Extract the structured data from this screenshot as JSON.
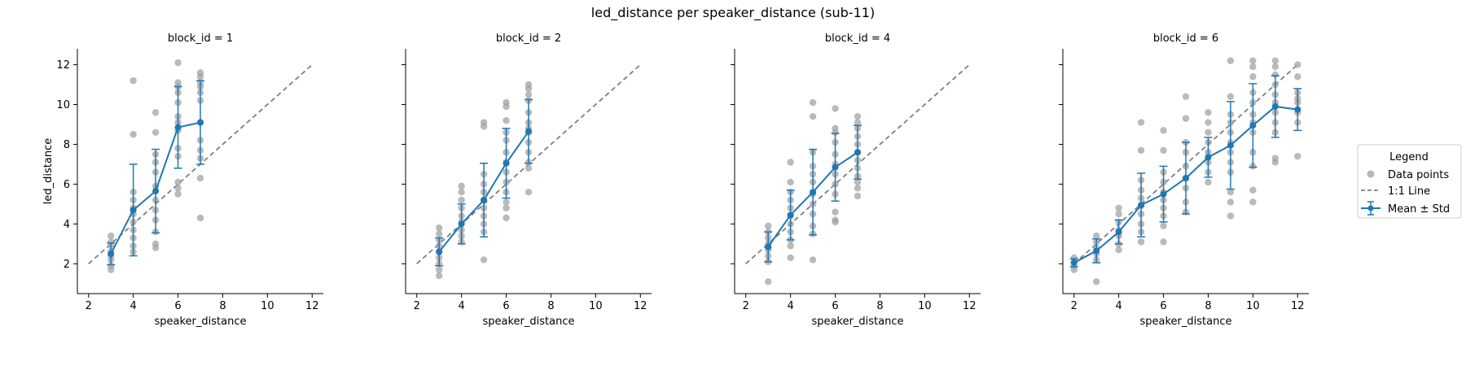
{
  "figure": {
    "title": "led_distance per speaker_distance (sub-11)",
    "x_label": "speaker_distance",
    "y_label": "led_distance"
  },
  "legend": {
    "title": "Legend",
    "placement": "right-outside",
    "items": [
      {
        "label": "Data points",
        "marker": "gray-dot"
      },
      {
        "label": "1:1 Line",
        "marker": "gray-dashed-line"
      },
      {
        "label": "Mean ± Std",
        "marker": "blue-errorbar-line"
      }
    ]
  },
  "colors": {
    "points": "#a0a0a0",
    "mean_line": "#1f77b4",
    "identity_line": "#7f7f7f"
  },
  "chart_data": [
    {
      "type": "scatter",
      "title": "block_id = 1",
      "xlabel": "speaker_distance",
      "ylabel": "led_distance",
      "xlim": [
        1.5,
        12.5
      ],
      "ylim": [
        0.5,
        12.8
      ],
      "xticks": [
        2,
        4,
        6,
        8,
        10,
        12
      ],
      "yticks": [
        2,
        4,
        6,
        8,
        10,
        12
      ],
      "identity_line": [
        2,
        12
      ],
      "points": [
        [
          3,
          3.4
        ],
        [
          3,
          3.1
        ],
        [
          3,
          2.9
        ],
        [
          3,
          2.6
        ],
        [
          3,
          2.4
        ],
        [
          3,
          2.2
        ],
        [
          3,
          1.9
        ],
        [
          3,
          1.7
        ],
        [
          4,
          11.2
        ],
        [
          4,
          8.5
        ],
        [
          4,
          5.6
        ],
        [
          4,
          5.2
        ],
        [
          4,
          4.8
        ],
        [
          4,
          4.5
        ],
        [
          4,
          4.1
        ],
        [
          4,
          3.7
        ],
        [
          4,
          3.3
        ],
        [
          4,
          2.9
        ],
        [
          4,
          2.6
        ],
        [
          5,
          9.6
        ],
        [
          5,
          8.6
        ],
        [
          5,
          7.5
        ],
        [
          5,
          7.1
        ],
        [
          5,
          6.6
        ],
        [
          5,
          5.9
        ],
        [
          5,
          5.2
        ],
        [
          5,
          4.7
        ],
        [
          5,
          4.2
        ],
        [
          5,
          3.6
        ],
        [
          5,
          3.0
        ],
        [
          5,
          2.8
        ],
        [
          6,
          12.1
        ],
        [
          6,
          11.1
        ],
        [
          6,
          10.9
        ],
        [
          6,
          10.6
        ],
        [
          6,
          10.1
        ],
        [
          6,
          9.4
        ],
        [
          6,
          9.1
        ],
        [
          6,
          8.7
        ],
        [
          6,
          7.8
        ],
        [
          6,
          7.4
        ],
        [
          6,
          6.1
        ],
        [
          6,
          5.8
        ],
        [
          6,
          5.5
        ],
        [
          7,
          11.6
        ],
        [
          7,
          11.4
        ],
        [
          7,
          11.1
        ],
        [
          7,
          10.9
        ],
        [
          7,
          10.6
        ],
        [
          7,
          10.2
        ],
        [
          7,
          9.1
        ],
        [
          7,
          8.2
        ],
        [
          7,
          7.7
        ],
        [
          7,
          7.3
        ],
        [
          7,
          6.3
        ],
        [
          7,
          4.3
        ]
      ],
      "means": [
        [
          3,
          2.5
        ],
        [
          4,
          4.7
        ],
        [
          5,
          5.65
        ],
        [
          6,
          8.85
        ],
        [
          7,
          9.1
        ]
      ],
      "std": [
        0.55,
        2.3,
        2.1,
        2.05,
        2.1
      ]
    },
    {
      "type": "scatter",
      "title": "block_id = 2",
      "xlabel": "speaker_distance",
      "ylabel": "",
      "xlim": [
        1.5,
        12.5
      ],
      "ylim": [
        0.5,
        12.8
      ],
      "xticks": [
        2,
        4,
        6,
        8,
        10,
        12
      ],
      "yticks": [
        2,
        4,
        6,
        8,
        10,
        12
      ],
      "identity_line": [
        2,
        12
      ],
      "points": [
        [
          3,
          3.8
        ],
        [
          3,
          3.5
        ],
        [
          3,
          3.2
        ],
        [
          3,
          2.9
        ],
        [
          3,
          2.6
        ],
        [
          3,
          2.3
        ],
        [
          3,
          2.0
        ],
        [
          3,
          1.7
        ],
        [
          3,
          1.4
        ],
        [
          4,
          5.9
        ],
        [
          4,
          5.6
        ],
        [
          4,
          5.2
        ],
        [
          4,
          4.8
        ],
        [
          4,
          4.4
        ],
        [
          4,
          4.1
        ],
        [
          4,
          3.7
        ],
        [
          4,
          3.4
        ],
        [
          4,
          3.1
        ],
        [
          5,
          9.1
        ],
        [
          5,
          8.9
        ],
        [
          5,
          6.5
        ],
        [
          5,
          6.0
        ],
        [
          5,
          5.6
        ],
        [
          5,
          5.2
        ],
        [
          5,
          4.8
        ],
        [
          5,
          4.4
        ],
        [
          5,
          4.0
        ],
        [
          5,
          3.6
        ],
        [
          5,
          2.2
        ],
        [
          6,
          10.1
        ],
        [
          6,
          9.9
        ],
        [
          6,
          9.2
        ],
        [
          6,
          8.6
        ],
        [
          6,
          8.2
        ],
        [
          6,
          7.6
        ],
        [
          6,
          7.1
        ],
        [
          6,
          6.6
        ],
        [
          6,
          6.1
        ],
        [
          6,
          5.6
        ],
        [
          6,
          5.1
        ],
        [
          6,
          4.8
        ],
        [
          6,
          4.3
        ],
        [
          7,
          11.0
        ],
        [
          7,
          10.8
        ],
        [
          7,
          10.5
        ],
        [
          7,
          10.2
        ],
        [
          7,
          9.6
        ],
        [
          7,
          9.1
        ],
        [
          7,
          8.8
        ],
        [
          7,
          8.6
        ],
        [
          7,
          8.1
        ],
        [
          7,
          7.6
        ],
        [
          7,
          7.1
        ],
        [
          7,
          6.8
        ],
        [
          7,
          5.6
        ]
      ],
      "means": [
        [
          3,
          2.6
        ],
        [
          4,
          4.0
        ],
        [
          5,
          5.2
        ],
        [
          6,
          7.05
        ],
        [
          7,
          8.65
        ]
      ],
      "std": [
        0.7,
        1.0,
        1.85,
        1.75,
        1.6
      ]
    },
    {
      "type": "scatter",
      "title": "block_id = 4",
      "xlabel": "speaker_distance",
      "ylabel": "",
      "xlim": [
        1.5,
        12.5
      ],
      "ylim": [
        0.5,
        12.8
      ],
      "xticks": [
        2,
        4,
        6,
        8,
        10,
        12
      ],
      "yticks": [
        2,
        4,
        6,
        8,
        10,
        12
      ],
      "identity_line": [
        2,
        12
      ],
      "points": [
        [
          3,
          3.9
        ],
        [
          3,
          3.6
        ],
        [
          3,
          3.3
        ],
        [
          3,
          3.0
        ],
        [
          3,
          2.7
        ],
        [
          3,
          2.4
        ],
        [
          3,
          2.1
        ],
        [
          3,
          1.1
        ],
        [
          4,
          7.1
        ],
        [
          4,
          6.1
        ],
        [
          4,
          5.6
        ],
        [
          4,
          5.2
        ],
        [
          4,
          4.8
        ],
        [
          4,
          4.4
        ],
        [
          4,
          4.0
        ],
        [
          4,
          3.6
        ],
        [
          4,
          3.2
        ],
        [
          4,
          2.9
        ],
        [
          4,
          2.3
        ],
        [
          5,
          10.1
        ],
        [
          5,
          9.4
        ],
        [
          5,
          7.6
        ],
        [
          5,
          6.9
        ],
        [
          5,
          6.5
        ],
        [
          5,
          6.1
        ],
        [
          5,
          5.5
        ],
        [
          5,
          5.0
        ],
        [
          5,
          4.5
        ],
        [
          5,
          3.9
        ],
        [
          5,
          3.5
        ],
        [
          5,
          2.2
        ],
        [
          6,
          9.8
        ],
        [
          6,
          8.8
        ],
        [
          6,
          8.6
        ],
        [
          6,
          8.1
        ],
        [
          6,
          7.5
        ],
        [
          6,
          7.0
        ],
        [
          6,
          6.5
        ],
        [
          6,
          6.0
        ],
        [
          6,
          5.5
        ],
        [
          6,
          4.6
        ],
        [
          6,
          4.2
        ],
        [
          6,
          4.1
        ],
        [
          7,
          9.4
        ],
        [
          7,
          9.1
        ],
        [
          7,
          8.8
        ],
        [
          7,
          8.4
        ],
        [
          7,
          8.0
        ],
        [
          7,
          7.6
        ],
        [
          7,
          7.2
        ],
        [
          7,
          6.8
        ],
        [
          7,
          6.4
        ],
        [
          7,
          6.1
        ],
        [
          7,
          5.8
        ],
        [
          7,
          5.4
        ]
      ],
      "means": [
        [
          3,
          2.85
        ],
        [
          4,
          4.45
        ],
        [
          5,
          5.6
        ],
        [
          6,
          6.85
        ],
        [
          7,
          7.6
        ]
      ],
      "std": [
        0.75,
        1.25,
        2.15,
        1.7,
        1.35
      ]
    },
    {
      "type": "scatter",
      "title": "block_id = 6",
      "xlabel": "speaker_distance",
      "ylabel": "",
      "xlim": [
        1.5,
        12.5
      ],
      "ylim": [
        0.5,
        12.8
      ],
      "xticks": [
        2,
        4,
        6,
        8,
        10,
        12
      ],
      "yticks": [
        2,
        4,
        6,
        8,
        10,
        12
      ],
      "identity_line": [
        2,
        12
      ],
      "points": [
        [
          2,
          2.3
        ],
        [
          2,
          2.1
        ],
        [
          2,
          1.9
        ],
        [
          2,
          1.7
        ],
        [
          3,
          3.4
        ],
        [
          3,
          3.1
        ],
        [
          3,
          2.8
        ],
        [
          3,
          2.5
        ],
        [
          3,
          2.2
        ],
        [
          3,
          1.1
        ],
        [
          4,
          4.8
        ],
        [
          4,
          4.5
        ],
        [
          4,
          4.1
        ],
        [
          4,
          3.7
        ],
        [
          4,
          3.4
        ],
        [
          4,
          3.0
        ],
        [
          4,
          2.7
        ],
        [
          5,
          9.1
        ],
        [
          5,
          7.7
        ],
        [
          5,
          6.2
        ],
        [
          5,
          5.7
        ],
        [
          5,
          5.3
        ],
        [
          5,
          4.9
        ],
        [
          5,
          4.5
        ],
        [
          5,
          4.0
        ],
        [
          5,
          3.6
        ],
        [
          5,
          3.1
        ],
        [
          6,
          8.7
        ],
        [
          6,
          7.7
        ],
        [
          6,
          6.6
        ],
        [
          6,
          6.1
        ],
        [
          6,
          5.6
        ],
        [
          6,
          5.2
        ],
        [
          6,
          4.8
        ],
        [
          6,
          4.4
        ],
        [
          6,
          3.9
        ],
        [
          6,
          3.1
        ],
        [
          7,
          10.4
        ],
        [
          7,
          9.3
        ],
        [
          7,
          8.1
        ],
        [
          7,
          7.6
        ],
        [
          7,
          6.9
        ],
        [
          7,
          6.3
        ],
        [
          7,
          5.8
        ],
        [
          7,
          5.1
        ],
        [
          7,
          4.6
        ],
        [
          8,
          9.6
        ],
        [
          8,
          9.1
        ],
        [
          8,
          8.6
        ],
        [
          8,
          8.1
        ],
        [
          8,
          7.6
        ],
        [
          8,
          7.1
        ],
        [
          8,
          6.6
        ],
        [
          8,
          6.1
        ],
        [
          9,
          12.2
        ],
        [
          9,
          10.4
        ],
        [
          9,
          9.5
        ],
        [
          9,
          9.1
        ],
        [
          9,
          8.6
        ],
        [
          9,
          8.1
        ],
        [
          9,
          7.6
        ],
        [
          9,
          7.1
        ],
        [
          9,
          6.6
        ],
        [
          9,
          5.6
        ],
        [
          9,
          5.1
        ],
        [
          9,
          4.4
        ],
        [
          10,
          12.2
        ],
        [
          10,
          11.9
        ],
        [
          10,
          11.4
        ],
        [
          10,
          10.6
        ],
        [
          10,
          10.1
        ],
        [
          10,
          9.5
        ],
        [
          10,
          9.1
        ],
        [
          10,
          8.6
        ],
        [
          10,
          7.6
        ],
        [
          10,
          6.9
        ],
        [
          10,
          5.7
        ],
        [
          10,
          5.1
        ],
        [
          11,
          12.2
        ],
        [
          11,
          11.9
        ],
        [
          11,
          11.5
        ],
        [
          11,
          11.0
        ],
        [
          11,
          10.5
        ],
        [
          11,
          10.1
        ],
        [
          11,
          9.6
        ],
        [
          11,
          9.1
        ],
        [
          11,
          8.6
        ],
        [
          11,
          7.3
        ],
        [
          11,
          7.1
        ],
        [
          12,
          12.0
        ],
        [
          12,
          11.4
        ],
        [
          12,
          10.6
        ],
        [
          12,
          10.3
        ],
        [
          12,
          10.1
        ],
        [
          12,
          9.6
        ],
        [
          12,
          9.1
        ],
        [
          12,
          7.4
        ]
      ],
      "means": [
        [
          2,
          2.05
        ],
        [
          3,
          2.65
        ],
        [
          4,
          3.6
        ],
        [
          5,
          4.95
        ],
        [
          6,
          5.5
        ],
        [
          7,
          6.3
        ],
        [
          8,
          7.35
        ],
        [
          9,
          7.95
        ],
        [
          10,
          8.95
        ],
        [
          11,
          9.9
        ],
        [
          12,
          9.75
        ]
      ],
      "std": [
        0.2,
        0.6,
        0.6,
        1.6,
        1.4,
        1.8,
        1.0,
        2.2,
        2.1,
        1.55,
        1.05
      ]
    }
  ]
}
